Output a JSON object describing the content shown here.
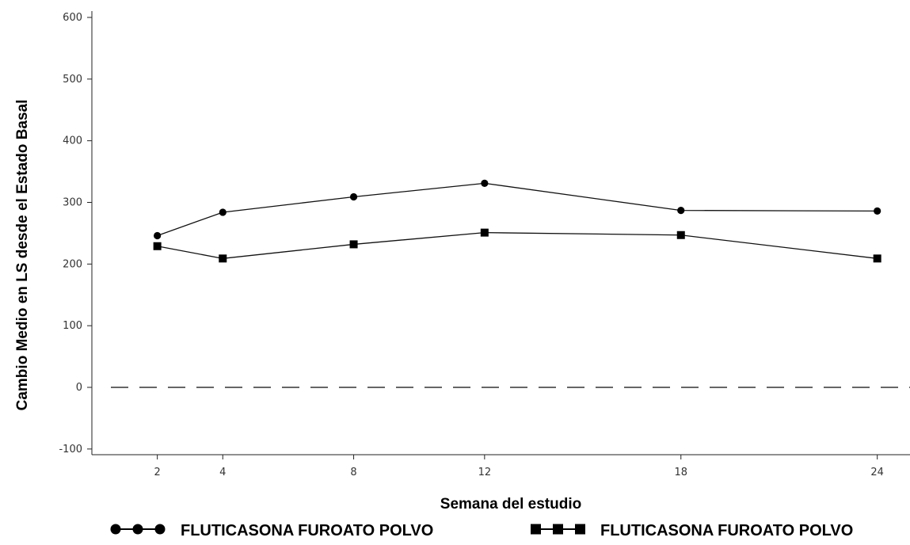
{
  "chart_data": {
    "type": "line",
    "title": "",
    "xlabel": "Semana del estudio",
    "ylabel": "Cambio Medio en LS desde el Estado Basal",
    "x_ticks": [
      2,
      4,
      8,
      12,
      18,
      24
    ],
    "y_ticks": [
      -100,
      0,
      100,
      200,
      300,
      400,
      500,
      600
    ],
    "xlim": [
      0,
      25
    ],
    "ylim": [
      -110,
      610
    ],
    "reference_line": {
      "y": 0,
      "style": "dashed"
    },
    "grid": false,
    "legend_position": "bottom",
    "series": [
      {
        "name": "FLUTICASONA FUROATO POLVO",
        "marker": "circle",
        "x": [
          2,
          4,
          8,
          12,
          18,
          24
        ],
        "y": [
          246,
          284,
          309,
          331,
          287,
          286
        ]
      },
      {
        "name": "FLUTICASONA FUROATO POLVO",
        "marker": "square",
        "x": [
          2,
          4,
          8,
          12,
          18,
          24
        ],
        "y": [
          229,
          209,
          232,
          251,
          247,
          209
        ]
      }
    ]
  }
}
